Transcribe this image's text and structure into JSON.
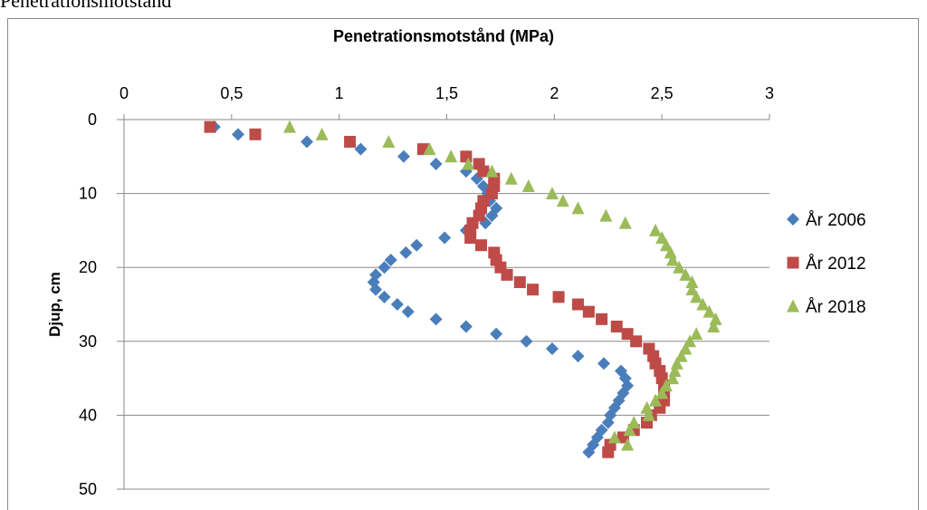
{
  "caption": "Penetrationsmotstånd",
  "chart_data": {
    "type": "scatter",
    "title": "Penetrationsmotstånd (MPa)",
    "xlabel": "",
    "ylabel": "Djup, cm",
    "xlim": [
      0,
      3
    ],
    "ylim": [
      0,
      50
    ],
    "y_inverted": true,
    "x_axis_position": "top",
    "x_ticks": [
      "0",
      "0,5",
      "1",
      "1,5",
      "2",
      "2,5",
      "3"
    ],
    "y_ticks": [
      "0",
      "10",
      "20",
      "30",
      "40",
      "50"
    ],
    "grid": "horizontal",
    "legend_position": "right",
    "series": [
      {
        "name": "År 2006",
        "marker": "diamond",
        "color": "#4a7ebb",
        "points": [
          [
            0.42,
            1
          ],
          [
            0.53,
            2
          ],
          [
            0.85,
            3
          ],
          [
            1.1,
            4
          ],
          [
            1.3,
            5
          ],
          [
            1.45,
            6
          ],
          [
            1.59,
            7
          ],
          [
            1.64,
            8
          ],
          [
            1.67,
            9
          ],
          [
            1.69,
            10
          ],
          [
            1.7,
            11
          ],
          [
            1.73,
            12
          ],
          [
            1.71,
            13
          ],
          [
            1.68,
            14
          ],
          [
            1.59,
            15
          ],
          [
            1.49,
            16
          ],
          [
            1.36,
            17
          ],
          [
            1.31,
            18
          ],
          [
            1.24,
            19
          ],
          [
            1.21,
            20
          ],
          [
            1.17,
            21
          ],
          [
            1.16,
            22
          ],
          [
            1.17,
            23
          ],
          [
            1.21,
            24
          ],
          [
            1.27,
            25
          ],
          [
            1.32,
            26
          ],
          [
            1.45,
            27
          ],
          [
            1.59,
            28
          ],
          [
            1.73,
            29
          ],
          [
            1.87,
            30
          ],
          [
            1.99,
            31
          ],
          [
            2.11,
            32
          ],
          [
            2.23,
            33
          ],
          [
            2.31,
            34
          ],
          [
            2.33,
            35
          ],
          [
            2.34,
            36
          ],
          [
            2.32,
            37
          ],
          [
            2.3,
            38
          ],
          [
            2.28,
            39
          ],
          [
            2.26,
            40
          ],
          [
            2.25,
            41
          ],
          [
            2.22,
            42
          ],
          [
            2.2,
            43
          ],
          [
            2.18,
            44
          ],
          [
            2.16,
            45
          ]
        ]
      },
      {
        "name": "År 2012",
        "marker": "square",
        "color": "#be4b48",
        "points": [
          [
            0.4,
            1
          ],
          [
            0.61,
            2
          ],
          [
            1.05,
            3
          ],
          [
            1.39,
            4
          ],
          [
            1.59,
            5
          ],
          [
            1.65,
            6
          ],
          [
            1.67,
            7
          ],
          [
            1.72,
            8
          ],
          [
            1.72,
            9
          ],
          [
            1.71,
            10
          ],
          [
            1.67,
            11
          ],
          [
            1.66,
            12
          ],
          [
            1.65,
            13
          ],
          [
            1.62,
            14
          ],
          [
            1.61,
            15
          ],
          [
            1.61,
            16
          ],
          [
            1.66,
            17
          ],
          [
            1.72,
            18
          ],
          [
            1.73,
            19
          ],
          [
            1.75,
            20
          ],
          [
            1.78,
            21
          ],
          [
            1.84,
            22
          ],
          [
            1.9,
            23
          ],
          [
            2.02,
            24
          ],
          [
            2.11,
            25
          ],
          [
            2.16,
            26
          ],
          [
            2.22,
            27
          ],
          [
            2.29,
            28
          ],
          [
            2.34,
            29
          ],
          [
            2.38,
            30
          ],
          [
            2.44,
            31
          ],
          [
            2.46,
            32
          ],
          [
            2.47,
            33
          ],
          [
            2.49,
            34
          ],
          [
            2.5,
            35
          ],
          [
            2.51,
            36
          ],
          [
            2.51,
            37
          ],
          [
            2.51,
            38
          ],
          [
            2.49,
            39
          ],
          [
            2.45,
            40
          ],
          [
            2.43,
            41
          ],
          [
            2.37,
            42
          ],
          [
            2.32,
            43
          ],
          [
            2.26,
            44
          ],
          [
            2.25,
            45
          ]
        ]
      },
      {
        "name": "År 2018",
        "marker": "triangle",
        "color": "#9bbb59",
        "points": [
          [
            0.77,
            1
          ],
          [
            0.92,
            2
          ],
          [
            1.23,
            3
          ],
          [
            1.42,
            4
          ],
          [
            1.52,
            5
          ],
          [
            1.6,
            6
          ],
          [
            1.71,
            7
          ],
          [
            1.8,
            8
          ],
          [
            1.88,
            9
          ],
          [
            1.99,
            10
          ],
          [
            2.04,
            11
          ],
          [
            2.11,
            12
          ],
          [
            2.24,
            13
          ],
          [
            2.33,
            14
          ],
          [
            2.47,
            15
          ],
          [
            2.5,
            16
          ],
          [
            2.52,
            17
          ],
          [
            2.54,
            18
          ],
          [
            2.55,
            19
          ],
          [
            2.58,
            20
          ],
          [
            2.61,
            21
          ],
          [
            2.64,
            22
          ],
          [
            2.64,
            23
          ],
          [
            2.66,
            24
          ],
          [
            2.69,
            25
          ],
          [
            2.72,
            26
          ],
          [
            2.75,
            27
          ],
          [
            2.74,
            28
          ],
          [
            2.66,
            29
          ],
          [
            2.63,
            30
          ],
          [
            2.61,
            31
          ],
          [
            2.59,
            32
          ],
          [
            2.57,
            33
          ],
          [
            2.56,
            34
          ],
          [
            2.55,
            35
          ],
          [
            2.52,
            36
          ],
          [
            2.5,
            37
          ],
          [
            2.47,
            38
          ],
          [
            2.43,
            39
          ],
          [
            2.44,
            40
          ],
          [
            2.37,
            41
          ],
          [
            2.35,
            42
          ],
          [
            2.28,
            43
          ],
          [
            2.34,
            44
          ]
        ]
      }
    ]
  }
}
